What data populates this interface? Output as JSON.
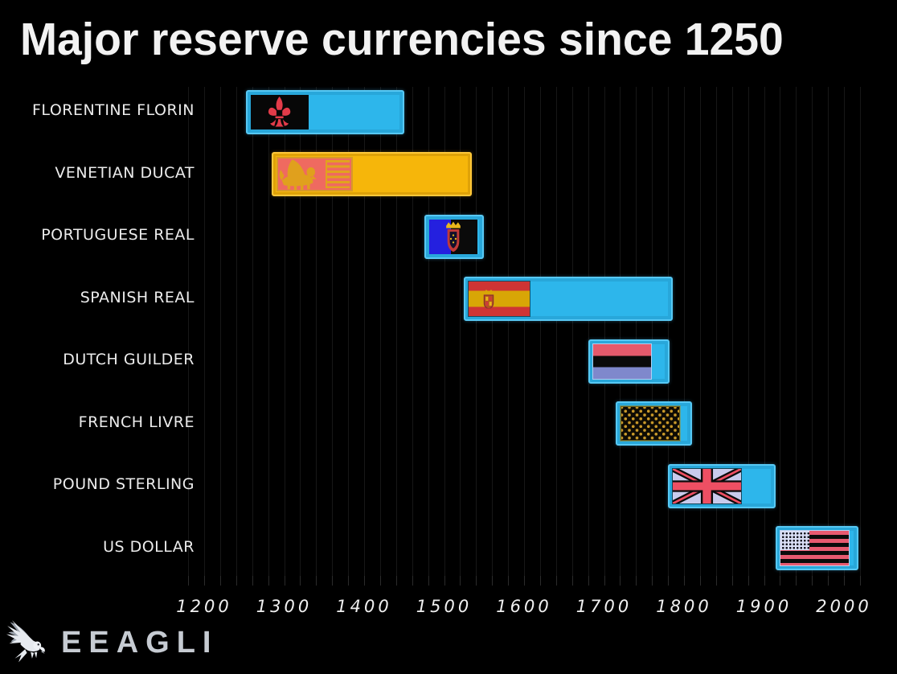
{
  "title": "Major reserve currencies since 1250",
  "logo": {
    "text": "EEAGLI",
    "icon": "eagle-icon"
  },
  "colors": {
    "background": "#000000",
    "bar_cyan": "#2db6eb",
    "bar_cyan_border": "#57c8f4",
    "bar_gold": "#f6b60a",
    "bar_gold_border": "#ffc83a",
    "gridline": "#171717",
    "text": "#f0f0f0",
    "logo_text": "#c6cbd2"
  },
  "chart_data": {
    "type": "bar",
    "orientation": "horizontal-timeline",
    "title": "Major reserve currencies since 1250",
    "xlabel": "",
    "ylabel": "",
    "xlim": [
      1150,
      2065
    ],
    "x_ticks": [
      1200,
      1300,
      1400,
      1500,
      1600,
      1700,
      1800,
      1900,
      2000
    ],
    "grid": {
      "axis": "x",
      "step": 20,
      "from": 1180,
      "to": 2020,
      "on": true
    },
    "legend": "none",
    "series": [
      {
        "label": "FLORENTINE FLORIN",
        "start": 1252,
        "end": 1450,
        "bar_color": "cyan",
        "flag": "florence"
      },
      {
        "label": "VENETIAN DUCAT",
        "start": 1284,
        "end": 1535,
        "bar_color": "gold",
        "flag": "venice"
      },
      {
        "label": "PORTUGUESE REAL",
        "start": 1475,
        "end": 1550,
        "bar_color": "cyan",
        "flag": "portugal"
      },
      {
        "label": "SPANISH REAL",
        "start": 1525,
        "end": 1786,
        "bar_color": "cyan",
        "flag": "spain"
      },
      {
        "label": "DUTCH GUILDER",
        "start": 1680,
        "end": 1782,
        "bar_color": "cyan",
        "flag": "netherlands"
      },
      {
        "label": "FRENCH LIVRE",
        "start": 1715,
        "end": 1810,
        "bar_color": "cyan",
        "flag": "france"
      },
      {
        "label": "POUND STERLING",
        "start": 1780,
        "end": 1915,
        "bar_color": "cyan",
        "flag": "uk"
      },
      {
        "label": "US DOLLAR",
        "start": 1915,
        "end": 2018,
        "bar_color": "cyan",
        "flag": "usa"
      }
    ]
  }
}
